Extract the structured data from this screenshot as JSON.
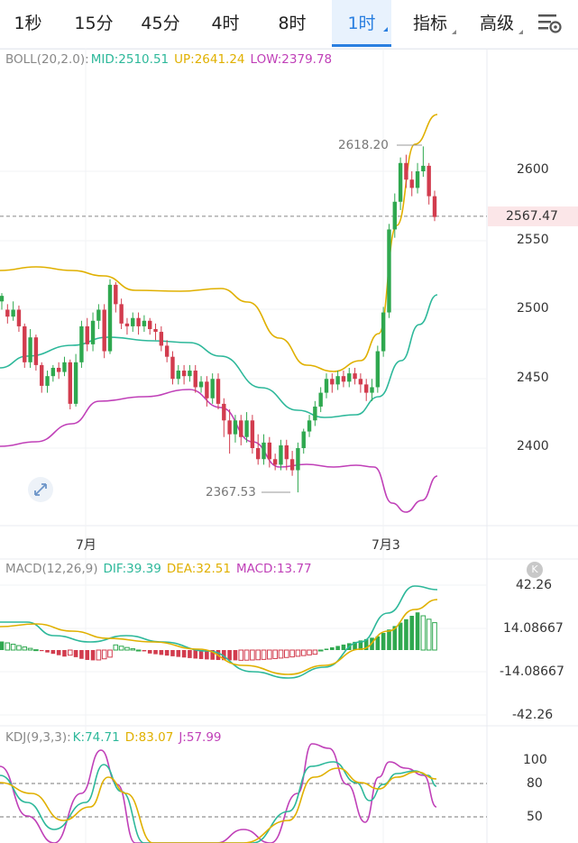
{
  "tabs": [
    {
      "label": "1秒"
    },
    {
      "label": "15分"
    },
    {
      "label": "45分"
    },
    {
      "label": "4时"
    },
    {
      "label": "8时"
    },
    {
      "label": "1时"
    },
    {
      "label": "指标"
    },
    {
      "label": "高级"
    }
  ],
  "active_tab": "1时",
  "boll": {
    "name": "BOLL(20,2.0):",
    "mid": "MID:2510.51",
    "up": "UP:2641.24",
    "low": "LOW:2379.78",
    "mid_color": "#2db89a",
    "up_color": "#e0b000",
    "low_color": "#c040b8"
  },
  "price_axis": [
    "2600",
    "2550",
    "2500",
    "2450",
    "2400"
  ],
  "current_price": "2567.47",
  "high_annotation": "2618.20",
  "low_annotation": "2367.53",
  "time_labels": [
    "7月",
    "7月3"
  ],
  "macd": {
    "name": "MACD(12,26,9)",
    "dif": "DIF:39.39",
    "dea": "DEA:32.51",
    "macd": "MACD:13.77",
    "axis": [
      "42.26",
      "14.08667",
      "-14.08667",
      "-42.26"
    ],
    "badge": "K"
  },
  "kdj": {
    "name": "KDJ(9,3,3):",
    "k": "K:74.71",
    "d": "D:83.07",
    "j": "J:57.99",
    "axis": [
      "100",
      "80",
      "50"
    ]
  },
  "colors": {
    "up": "#2fa84f",
    "down": "#d23c4e",
    "accent": "#2a7fe0"
  },
  "chart_data": {
    "type": "candlestick",
    "price_range": [
      2350,
      2660
    ],
    "candles": [
      [
        2506,
        2510,
        2500,
        2512
      ],
      [
        2500,
        2495,
        2490,
        2504
      ],
      [
        2495,
        2500,
        2492,
        2506
      ],
      [
        2500,
        2488,
        2484,
        2503
      ],
      [
        2488,
        2462,
        2458,
        2490
      ],
      [
        2462,
        2480,
        2458,
        2486
      ],
      [
        2480,
        2460,
        2456,
        2482
      ],
      [
        2460,
        2445,
        2440,
        2462
      ],
      [
        2445,
        2452,
        2440,
        2456
      ],
      [
        2452,
        2458,
        2448,
        2460
      ],
      [
        2458,
        2455,
        2450,
        2462
      ],
      [
        2455,
        2462,
        2452,
        2466
      ],
      [
        2462,
        2432,
        2428,
        2464
      ],
      [
        2432,
        2462,
        2430,
        2468
      ],
      [
        2462,
        2488,
        2458,
        2492
      ],
      [
        2488,
        2475,
        2470,
        2494
      ],
      [
        2475,
        2492,
        2470,
        2498
      ],
      [
        2492,
        2500,
        2486,
        2504
      ],
      [
        2500,
        2470,
        2465,
        2504
      ],
      [
        2470,
        2518,
        2468,
        2522
      ],
      [
        2518,
        2504,
        2498,
        2520
      ],
      [
        2504,
        2490,
        2486,
        2508
      ],
      [
        2490,
        2488,
        2482,
        2494
      ],
      [
        2488,
        2494,
        2484,
        2498
      ],
      [
        2494,
        2488,
        2482,
        2498
      ],
      [
        2488,
        2492,
        2484,
        2496
      ],
      [
        2492,
        2486,
        2482,
        2494
      ],
      [
        2486,
        2484,
        2478,
        2490
      ],
      [
        2484,
        2474,
        2470,
        2488
      ],
      [
        2474,
        2466,
        2462,
        2478
      ],
      [
        2466,
        2450,
        2446,
        2470
      ],
      [
        2450,
        2456,
        2446,
        2460
      ],
      [
        2456,
        2452,
        2446,
        2460
      ],
      [
        2452,
        2456,
        2448,
        2460
      ],
      [
        2456,
        2444,
        2440,
        2460
      ],
      [
        2444,
        2448,
        2440,
        2452
      ],
      [
        2448,
        2436,
        2430,
        2452
      ],
      [
        2436,
        2450,
        2432,
        2454
      ],
      [
        2450,
        2432,
        2428,
        2454
      ],
      [
        2432,
        2420,
        2408,
        2436
      ],
      [
        2420,
        2410,
        2396,
        2428
      ],
      [
        2410,
        2420,
        2404,
        2424
      ],
      [
        2420,
        2408,
        2402,
        2424
      ],
      [
        2408,
        2420,
        2404,
        2426
      ],
      [
        2420,
        2400,
        2396,
        2424
      ],
      [
        2400,
        2392,
        2388,
        2410
      ],
      [
        2392,
        2404,
        2388,
        2410
      ],
      [
        2404,
        2392,
        2386,
        2408
      ],
      [
        2392,
        2388,
        2384,
        2396
      ],
      [
        2388,
        2402,
        2384,
        2406
      ],
      [
        2402,
        2392,
        2384,
        2406
      ],
      [
        2392,
        2384,
        2380,
        2398
      ],
      [
        2384,
        2400,
        2368,
        2404
      ],
      [
        2400,
        2412,
        2396,
        2414
      ],
      [
        2412,
        2420,
        2408,
        2424
      ],
      [
        2420,
        2430,
        2416,
        2434
      ],
      [
        2430,
        2440,
        2426,
        2444
      ],
      [
        2440,
        2450,
        2436,
        2454
      ],
      [
        2450,
        2446,
        2440,
        2454
      ],
      [
        2446,
        2452,
        2442,
        2456
      ],
      [
        2452,
        2448,
        2444,
        2456
      ],
      [
        2448,
        2454,
        2444,
        2458
      ],
      [
        2454,
        2450,
        2446,
        2458
      ],
      [
        2450,
        2446,
        2440,
        2454
      ],
      [
        2446,
        2440,
        2434,
        2450
      ],
      [
        2440,
        2444,
        2434,
        2450
      ],
      [
        2444,
        2470,
        2440,
        2474
      ],
      [
        2470,
        2498,
        2466,
        2502
      ],
      [
        2498,
        2558,
        2494,
        2562
      ],
      [
        2558,
        2578,
        2552,
        2584
      ],
      [
        2578,
        2606,
        2572,
        2610
      ],
      [
        2606,
        2594,
        2588,
        2612
      ],
      [
        2594,
        2588,
        2582,
        2600
      ],
      [
        2588,
        2600,
        2584,
        2606
      ],
      [
        2600,
        2604,
        2596,
        2618
      ],
      [
        2604,
        2582,
        2576,
        2606
      ],
      [
        2582,
        2567,
        2564,
        2586
      ]
    ],
    "macd_range": [
      -50,
      50
    ],
    "kdj_range": [
      30,
      120
    ]
  }
}
